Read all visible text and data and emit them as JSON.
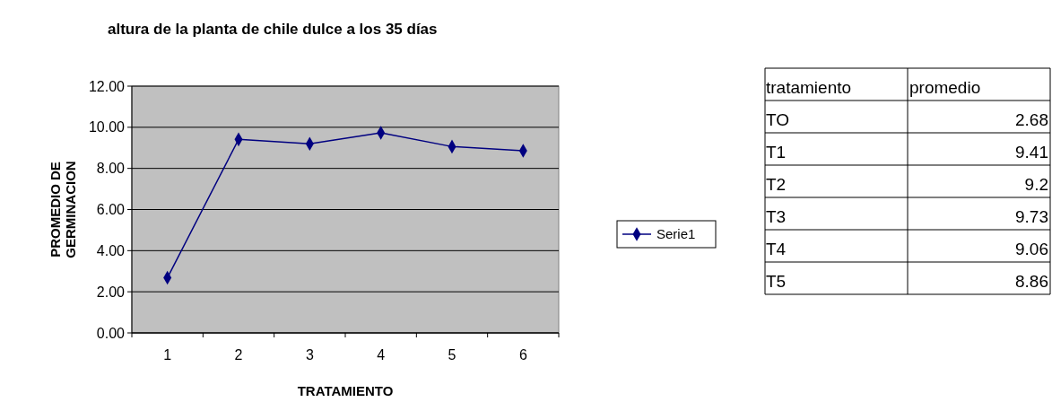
{
  "chart_data": [
    {
      "type": "line",
      "title": "altura de la planta de chile dulce a los 35 días",
      "xlabel": "TRATAMIENTO",
      "ylabel": "PROMEDIO DE GERMINACION",
      "categories": [
        "1",
        "2",
        "3",
        "4",
        "5",
        "6"
      ],
      "series": [
        {
          "name": "Serie1",
          "color": "#000080",
          "values": [
            2.68,
            9.41,
            9.2,
            9.73,
            9.06,
            8.86
          ]
        }
      ],
      "ylim": [
        0,
        12
      ],
      "yticks": [
        {
          "value": 0,
          "label": "0.00"
        },
        {
          "value": 2,
          "label": "2.00"
        },
        {
          "value": 4,
          "label": "4.00"
        },
        {
          "value": 6,
          "label": "6.00"
        },
        {
          "value": 8,
          "label": "8.00"
        },
        {
          "value": 10,
          "label": "10.00"
        },
        {
          "value": 12,
          "label": "12.00"
        }
      ],
      "grid": "y",
      "legend": "right",
      "marker": "diamond",
      "line_style": "solid"
    },
    {
      "type": "other",
      "xlabel": "tratamiento",
      "ylabel": "promedio",
      "categories": [
        "TO",
        "T1",
        "T2",
        "T3",
        "T4",
        "T5"
      ],
      "values": [
        2.68,
        9.41,
        9.2,
        9.73,
        9.06,
        8.86
      ],
      "data_labels": true
    }
  ]
}
